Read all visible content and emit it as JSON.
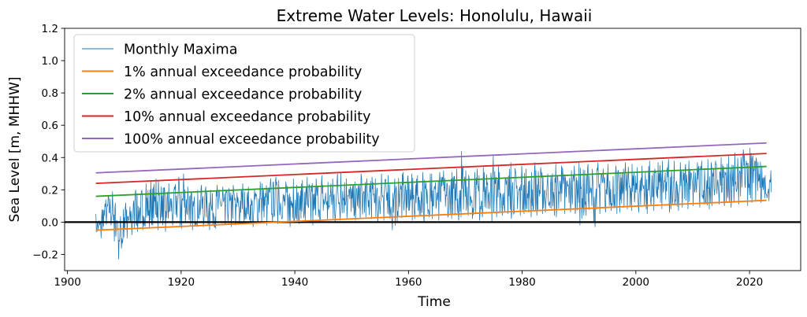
{
  "chart_data": {
    "type": "line",
    "title": "Extreme Water Levels: Honolulu, Hawaii",
    "xlabel": "Time",
    "ylabel": "Sea Level [m, MHHW]",
    "xlim": [
      1899.5,
      2029
    ],
    "ylim": [
      -0.3,
      1.2
    ],
    "xticks": [
      1900,
      1920,
      1940,
      1960,
      1980,
      2000,
      2020
    ],
    "yticks": [
      -0.2,
      0.0,
      0.2,
      0.4,
      0.6,
      0.8,
      1.0,
      1.2
    ],
    "xtick_labels": [
      "1900",
      "1920",
      "1940",
      "1960",
      "1980",
      "2000",
      "2020"
    ],
    "ytick_labels": [
      "−0.2",
      "0.0",
      "0.2",
      "0.4",
      "0.6",
      "0.8",
      "1.0",
      "1.2"
    ],
    "legend_position": "upper-left",
    "grid": false,
    "reference_line": {
      "y": 0.0,
      "color": "#000000"
    },
    "series": [
      {
        "name": "Monthly Maxima",
        "kind": "monthly",
        "color": "#1f77b4",
        "x_start": 1905.0,
        "x_end": 2023.0,
        "trend_start": 0.02,
        "trend_end": 0.25,
        "noise_amplitude": 0.22,
        "annual_peaks_y": [
          0.05,
          0.14,
          0.19,
          0.12,
          0.08,
          0.12,
          0.18,
          0.2,
          0.24,
          0.25,
          0.27,
          0.26,
          0.24,
          0.22,
          0.28,
          0.3,
          0.22,
          0.2,
          0.23,
          0.22,
          0.2,
          0.23,
          0.22,
          0.21,
          0.23,
          0.24,
          0.22,
          0.2,
          0.25,
          0.24,
          0.27,
          0.28,
          0.26,
          0.25,
          0.27,
          0.23,
          0.26,
          0.28,
          0.27,
          0.29,
          0.25,
          0.27,
          0.3,
          0.31,
          0.27,
          0.25,
          0.3,
          0.27,
          0.28,
          0.27,
          0.3,
          0.29,
          0.27,
          0.3,
          0.31,
          0.3,
          0.29,
          0.31,
          0.3,
          0.3,
          0.31,
          0.32,
          0.31,
          0.33,
          0.44,
          0.32,
          0.31,
          0.33,
          0.34,
          0.41,
          0.35,
          0.31,
          0.33,
          0.37,
          0.35,
          0.33,
          0.31,
          0.37,
          0.34,
          0.3,
          0.36,
          0.35,
          0.34,
          0.32,
          0.35,
          0.37,
          0.36,
          0.33,
          0.37,
          0.33,
          0.36,
          0.35,
          0.33,
          0.37,
          0.36,
          0.34,
          0.35,
          0.38,
          0.37,
          0.38,
          0.39,
          0.38,
          0.37,
          0.36,
          0.38,
          0.37,
          0.38,
          0.39,
          0.37,
          0.38,
          0.4,
          0.41,
          0.43,
          0.45,
          0.42,
          0.46,
          0.4,
          0.35,
          0.32
        ],
        "annual_minima_y": [
          -0.1,
          -0.05,
          -0.02,
          -0.12,
          -0.23,
          -0.1,
          -0.08,
          -0.06,
          -0.05,
          -0.04,
          -0.05,
          -0.02,
          -0.06,
          -0.02,
          -0.03,
          -0.04,
          -0.02,
          -0.05,
          -0.03,
          -0.02,
          -0.05,
          -0.04,
          -0.02,
          -0.03,
          -0.02,
          -0.01,
          0.0,
          -0.03,
          -0.01,
          0.0,
          -0.02,
          0.0,
          -0.01,
          0.0,
          -0.03,
          -0.01,
          0.0,
          0.01,
          -0.02,
          0.0,
          0.01,
          0.02,
          0.0,
          0.01,
          0.02,
          0.01,
          0.02,
          0.03,
          0.02,
          0.0,
          0.01,
          0.02,
          -0.05,
          0.0,
          0.03,
          0.01,
          0.02,
          0.0,
          0.03,
          0.02,
          0.01,
          0.03,
          0.02,
          0.01,
          0.03,
          0.04,
          0.02,
          0.01,
          0.03,
          0.0,
          0.03,
          0.04,
          0.05,
          0.02,
          0.04,
          0.05,
          0.03,
          0.04,
          0.05,
          0.06,
          0.04,
          0.03,
          0.05,
          0.06,
          0.05,
          -0.02,
          0.04,
          -0.03,
          0.05,
          0.06,
          0.07,
          0.05,
          0.06,
          0.08,
          0.07,
          0.06,
          0.08,
          0.05,
          0.07,
          0.08,
          0.06,
          0.08,
          0.07,
          0.09,
          0.08,
          0.1,
          0.09,
          0.08,
          0.1,
          0.11,
          0.1,
          0.09,
          0.12,
          0.11,
          0.1,
          0.12,
          0.13,
          0.12,
          0.13
        ]
      },
      {
        "name": "1% annual exceedance probability",
        "color": "#ff7f0e",
        "x": [
          1905,
          2023
        ],
        "y": [
          -0.05,
          0.135
        ]
      },
      {
        "name": "2% annual exceedance probability",
        "color": "#2ca02c",
        "x": [
          1905,
          2023
        ],
        "y": [
          0.16,
          0.345
        ]
      },
      {
        "name": "10% annual exceedance probability",
        "color": "#d62728",
        "x": [
          1905,
          2023
        ],
        "y": [
          0.24,
          0.425
        ]
      },
      {
        "name": "100% annual exceedance probability",
        "color": "#9467bd",
        "x": [
          1905,
          2023
        ],
        "y": [
          0.305,
          0.49
        ]
      }
    ]
  }
}
